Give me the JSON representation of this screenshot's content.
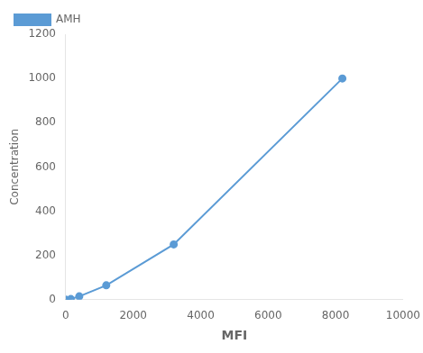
{
  "chart_data": {
    "type": "line",
    "x": [
      0,
      150,
      400,
      1200,
      3200,
      8200
    ],
    "series": [
      {
        "name": "AMH",
        "color": "#5B9BD5",
        "values": [
          0,
          3,
          15,
          65,
          250,
          1000
        ]
      }
    ],
    "marker": "circle",
    "xlabel": "MFI",
    "ylabel": "Concentration",
    "xlim": [
      0,
      10000
    ],
    "ylim": [
      0,
      1200
    ],
    "xticks": [
      0,
      2000,
      4000,
      6000,
      8000,
      10000
    ],
    "yticks": [
      0,
      200,
      400,
      600,
      800,
      1000,
      1200
    ],
    "grid": false,
    "legend": "upper left"
  }
}
